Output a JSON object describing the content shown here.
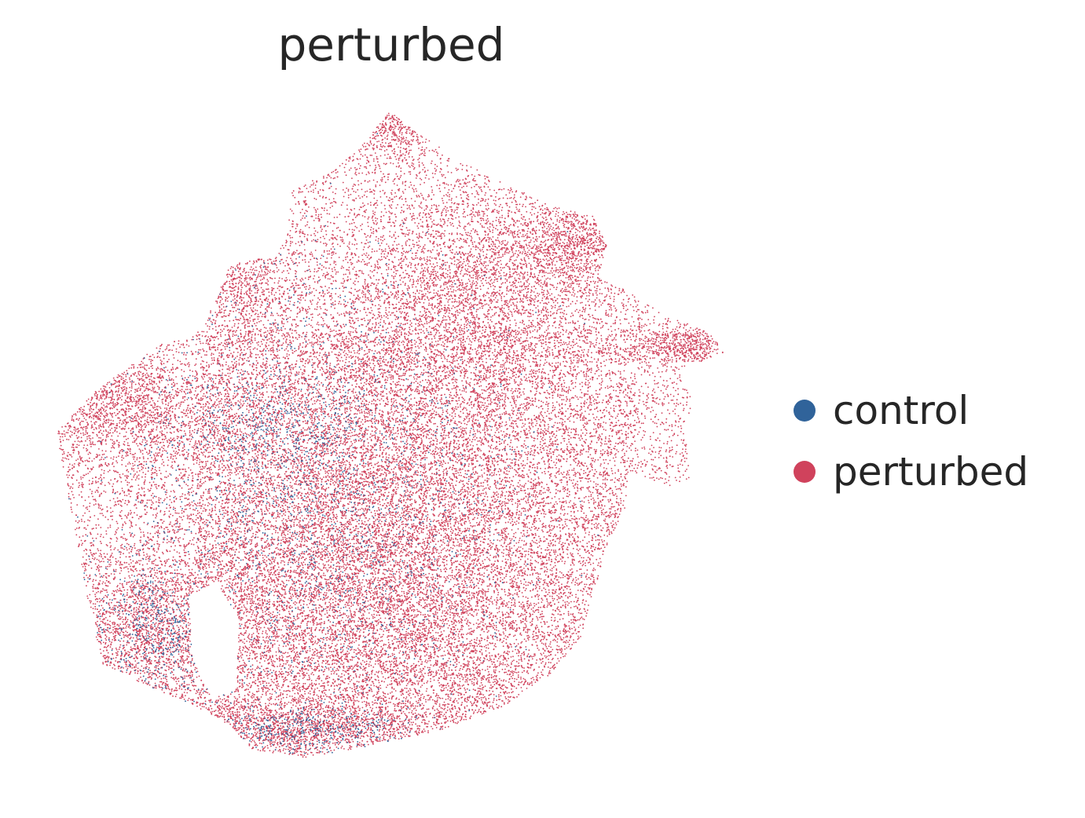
{
  "chart_data": {
    "type": "scatter",
    "title": "perturbed",
    "xlabel": "",
    "ylabel": "",
    "axes_visible": false,
    "grid": false,
    "legend_position": "right",
    "point_size": "tiny",
    "series": [
      {
        "name": "control",
        "color": "#30639a",
        "relative_count": 0.12,
        "description_of_density": "sparse, concentrated in central-left lower region"
      },
      {
        "name": "perturbed",
        "color": "#d0425c",
        "relative_count": 0.88,
        "description_of_density": "dense throughout the whole cloud"
      }
    ]
  }
}
